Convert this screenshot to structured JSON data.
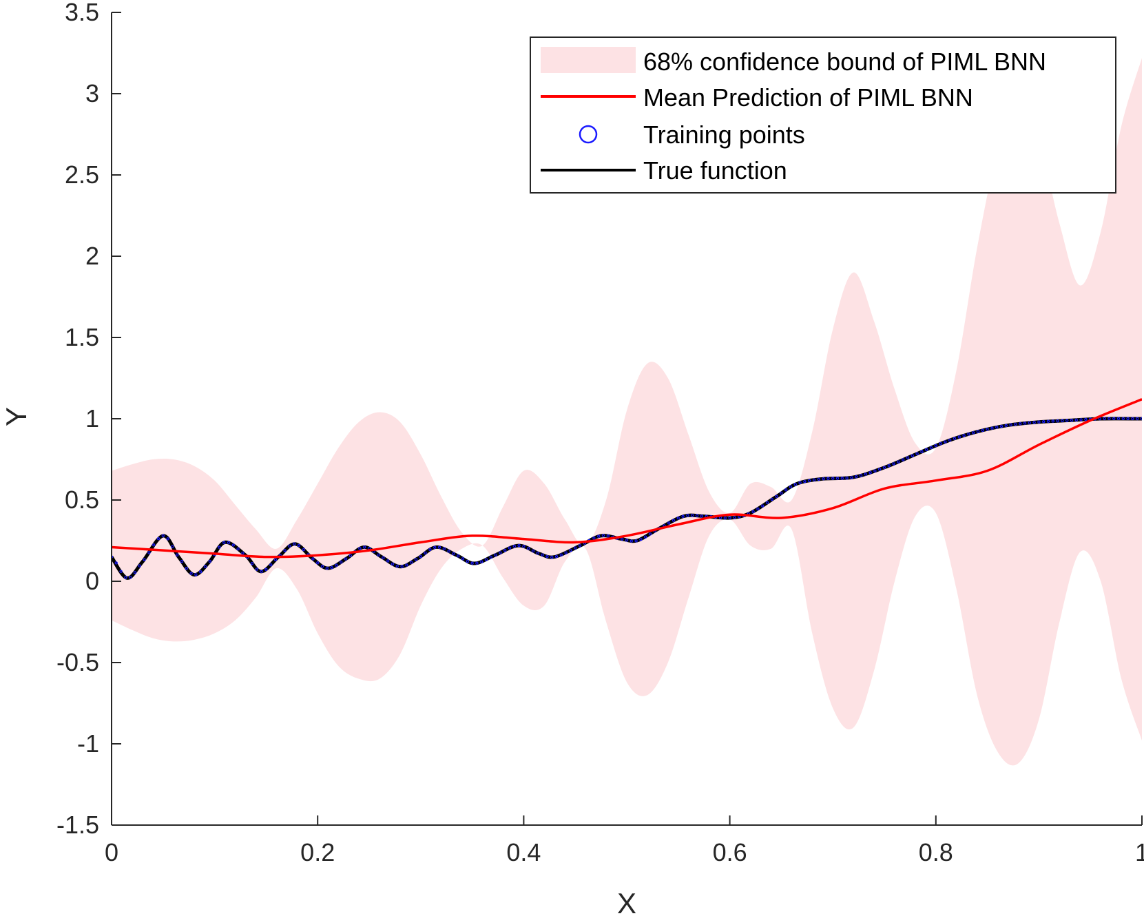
{
  "chart_data": {
    "type": "line",
    "title": "",
    "xlabel": "X",
    "ylabel": "Y",
    "xlim": [
      0,
      1
    ],
    "ylim": [
      -1.5,
      3.5
    ],
    "xticks": [
      0,
      0.2,
      0.4,
      0.6,
      0.8,
      1
    ],
    "xtick_labels": [
      "0",
      "0.2",
      "0.4",
      "0.6",
      "0.8",
      "1"
    ],
    "yticks": [
      -1.5,
      -1,
      -0.5,
      0,
      0.5,
      1,
      1.5,
      2,
      2.5,
      3,
      3.5
    ],
    "ytick_labels": [
      "-1.5",
      "-1",
      "-0.5",
      "0",
      "0.5",
      "1",
      "1.5",
      "2",
      "2.5",
      "3",
      "3.5"
    ],
    "grid": false,
    "legend_position": "top-right",
    "legend": [
      {
        "label": "68% confidence bound of PIML BNN",
        "kind": "area"
      },
      {
        "label": "Mean Prediction of PIML BNN",
        "kind": "line"
      },
      {
        "label": "Training points",
        "kind": "marker"
      },
      {
        "label": "True function",
        "kind": "line"
      }
    ],
    "series": [
      {
        "name": "68% confidence bound of PIML BNN",
        "kind": "band",
        "color": "#fde2e4",
        "x": [
          0,
          0.02,
          0.04,
          0.06,
          0.08,
          0.1,
          0.12,
          0.14,
          0.16,
          0.18,
          0.2,
          0.22,
          0.24,
          0.26,
          0.28,
          0.3,
          0.32,
          0.34,
          0.36,
          0.38,
          0.4,
          0.42,
          0.44,
          0.46,
          0.48,
          0.5,
          0.52,
          0.54,
          0.56,
          0.58,
          0.6,
          0.62,
          0.64,
          0.66,
          0.68,
          0.7,
          0.72,
          0.74,
          0.76,
          0.78,
          0.8,
          0.82,
          0.84,
          0.86,
          0.88,
          0.9,
          0.92,
          0.94,
          0.96,
          0.98,
          1
        ],
        "upper": [
          0.68,
          0.72,
          0.75,
          0.75,
          0.71,
          0.62,
          0.47,
          0.32,
          0.2,
          0.38,
          0.6,
          0.82,
          0.98,
          1.04,
          0.98,
          0.78,
          0.52,
          0.3,
          0.22,
          0.46,
          0.68,
          0.6,
          0.38,
          0.22,
          0.5,
          1.05,
          1.34,
          1.25,
          0.9,
          0.55,
          0.42,
          0.6,
          0.58,
          0.5,
          0.92,
          1.55,
          1.9,
          1.6,
          1.18,
          0.85,
          0.82,
          1.3,
          2.05,
          2.65,
          2.95,
          2.72,
          2.2,
          1.82,
          2.15,
          2.8,
          3.22
        ],
        "lower": [
          -0.24,
          -0.3,
          -0.35,
          -0.37,
          -0.36,
          -0.32,
          -0.24,
          -0.1,
          0.08,
          -0.05,
          -0.32,
          -0.52,
          -0.6,
          -0.6,
          -0.45,
          -0.15,
          0.08,
          0.2,
          0.22,
          0.02,
          -0.15,
          -0.15,
          0.12,
          0.2,
          -0.25,
          -0.62,
          -0.7,
          -0.5,
          -0.1,
          0.28,
          0.38,
          0.22,
          0.2,
          0.32,
          -0.32,
          -0.78,
          -0.9,
          -0.55,
          0.0,
          0.4,
          0.42,
          -0.05,
          -0.7,
          -1.05,
          -1.12,
          -0.85,
          -0.25,
          0.18,
          0.0,
          -0.6,
          -0.98
        ]
      },
      {
        "name": "Mean Prediction of PIML BNN",
        "kind": "line",
        "color": "#ff0000",
        "x": [
          0,
          0.05,
          0.1,
          0.15,
          0.2,
          0.25,
          0.3,
          0.35,
          0.4,
          0.45,
          0.5,
          0.55,
          0.6,
          0.65,
          0.7,
          0.75,
          0.8,
          0.85,
          0.9,
          0.95,
          1
        ],
        "values": [
          0.21,
          0.19,
          0.17,
          0.15,
          0.16,
          0.19,
          0.24,
          0.28,
          0.26,
          0.24,
          0.28,
          0.35,
          0.41,
          0.39,
          0.45,
          0.57,
          0.62,
          0.68,
          0.84,
          0.99,
          1.12
        ]
      },
      {
        "name": "True function",
        "kind": "line",
        "color": "#000000",
        "x": [
          0,
          0.015,
          0.03,
          0.05,
          0.065,
          0.08,
          0.095,
          0.11,
          0.13,
          0.145,
          0.162,
          0.178,
          0.195,
          0.21,
          0.228,
          0.245,
          0.262,
          0.28,
          0.297,
          0.315,
          0.335,
          0.352,
          0.372,
          0.395,
          0.415,
          0.43,
          0.455,
          0.475,
          0.495,
          0.51,
          0.53,
          0.555,
          0.575,
          0.6,
          0.62,
          0.645,
          0.665,
          0.69,
          0.72,
          0.75,
          0.78,
          0.81,
          0.84,
          0.87,
          0.9,
          0.93,
          0.96,
          1
        ],
        "values": [
          0.15,
          0.02,
          0.12,
          0.28,
          0.15,
          0.04,
          0.12,
          0.24,
          0.16,
          0.06,
          0.15,
          0.23,
          0.14,
          0.08,
          0.14,
          0.21,
          0.15,
          0.09,
          0.14,
          0.21,
          0.16,
          0.11,
          0.16,
          0.22,
          0.17,
          0.15,
          0.22,
          0.28,
          0.26,
          0.25,
          0.32,
          0.4,
          0.4,
          0.39,
          0.42,
          0.52,
          0.6,
          0.63,
          0.64,
          0.7,
          0.78,
          0.86,
          0.92,
          0.96,
          0.98,
          0.99,
          1.0,
          1.0
        ]
      },
      {
        "name": "Training points",
        "kind": "scatter",
        "color": "#1a1aff",
        "note_values": "dense along the true function over the full x range"
      }
    ]
  }
}
